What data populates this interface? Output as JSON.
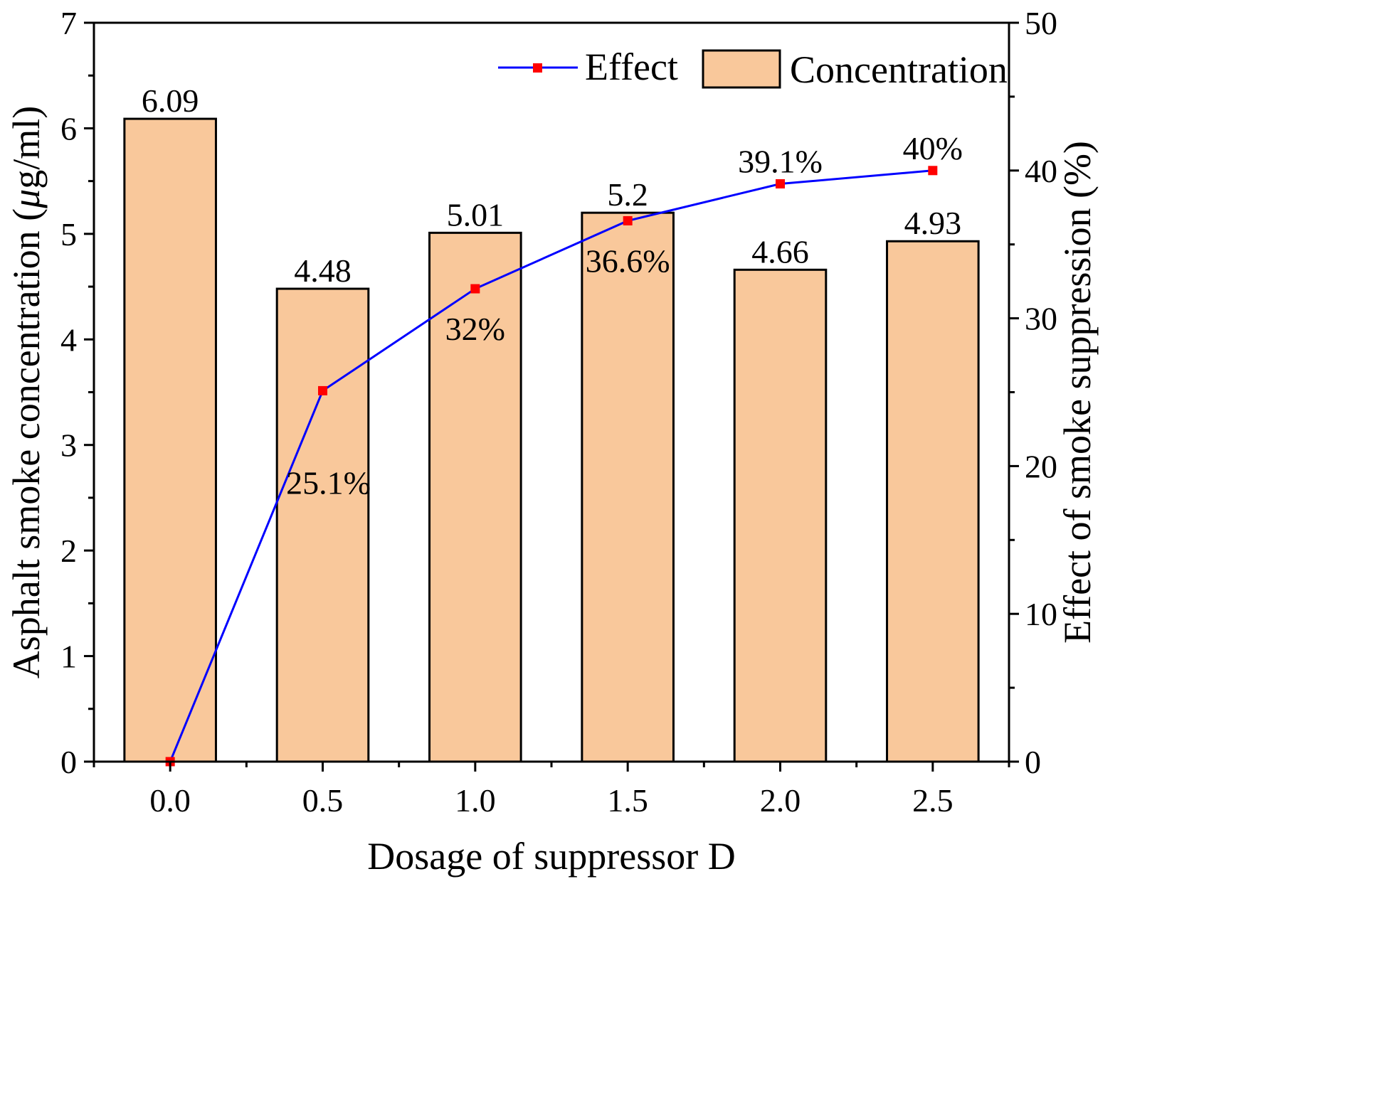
{
  "chart_data": {
    "type": "bar+line",
    "title": "",
    "xlabel": "Dosage of suppressor D",
    "ylabel_left_prefix": "Asphalt smoke concentration (",
    "ylabel_left_unit_mu": "μ",
    "ylabel_left_suffix": "g/ml)",
    "ylabel_right": "Effect of smoke suppression (%)",
    "x": [
      0.0,
      0.5,
      1.0,
      1.5,
      2.0,
      2.5
    ],
    "categories": [
      "0.0",
      "0.5",
      "1.0",
      "1.5",
      "2.0",
      "2.5"
    ],
    "xlim": [
      -0.25,
      2.75
    ],
    "ylim_left": [
      0,
      7
    ],
    "ylim_right": [
      0,
      50
    ],
    "left_ticks": [
      "0",
      "1",
      "2",
      "3",
      "4",
      "5",
      "6",
      "7"
    ],
    "right_ticks": [
      "0",
      "10",
      "20",
      "30",
      "40",
      "50"
    ],
    "bar_width": 0.3,
    "series": [
      {
        "name": "Concentration",
        "type": "bar",
        "axis": "left",
        "color": "#F9C89B",
        "values": [
          6.09,
          4.48,
          5.01,
          5.2,
          4.66,
          4.93
        ],
        "labels": [
          "6.09",
          "4.48",
          "5.01",
          "5.2",
          "4.66",
          "4.93"
        ]
      },
      {
        "name": "Effect",
        "type": "line",
        "axis": "right",
        "color": "#0000FF",
        "marker_color": "#FF0000",
        "values": [
          0,
          25.1,
          32,
          36.6,
          39.1,
          40
        ],
        "labels": [
          "",
          "25.1%",
          "32%",
          "36.6%",
          "39.1%",
          "40%"
        ],
        "label_position": [
          "",
          "below-right",
          "below",
          "below",
          "above",
          "above"
        ]
      }
    ],
    "legend": {
      "position": "top-right",
      "entries": [
        {
          "label": "Effect",
          "kind": "line"
        },
        {
          "label": "Concentration",
          "kind": "bar"
        }
      ]
    }
  }
}
